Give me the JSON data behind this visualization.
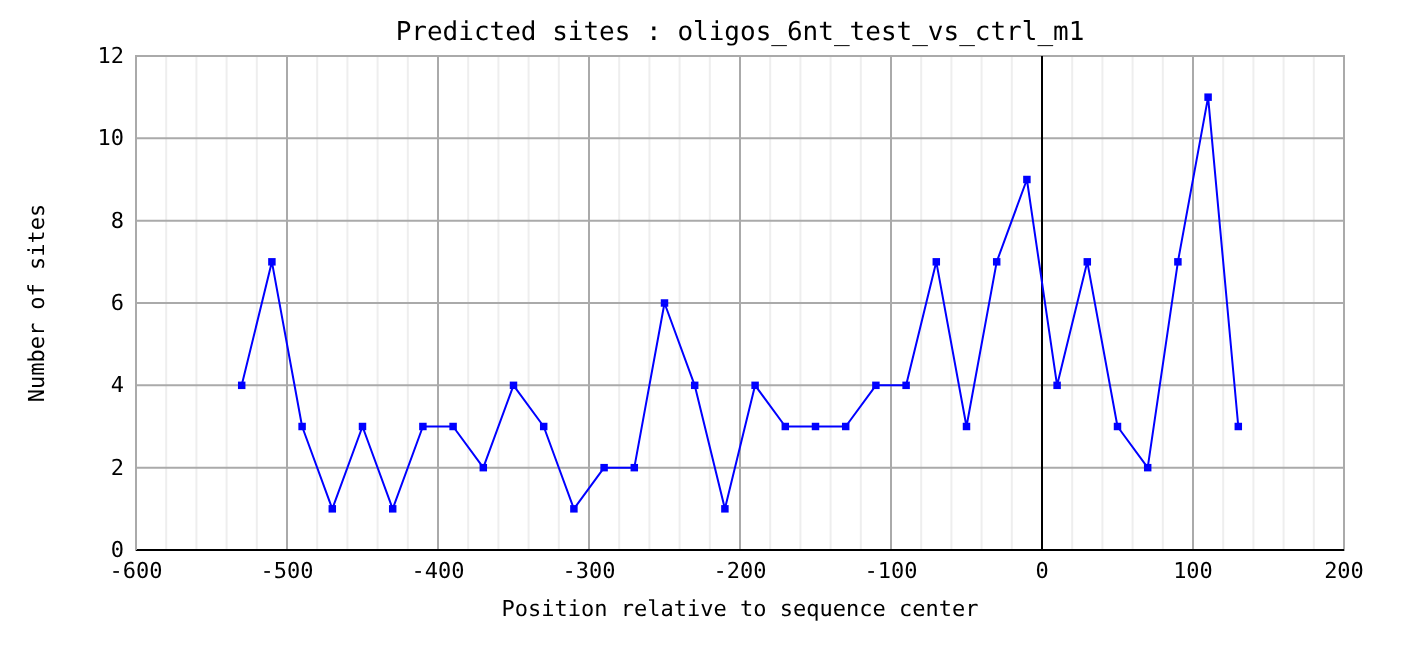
{
  "chart_data": {
    "type": "line",
    "title": "Predicted sites : oligos_6nt_test_vs_ctrl_m1",
    "xlabel": "Position relative to sequence center",
    "ylabel": "Number of sites",
    "x": [
      -530,
      -510,
      -490,
      -470,
      -450,
      -430,
      -410,
      -390,
      -370,
      -350,
      -330,
      -310,
      -290,
      -270,
      -250,
      -230,
      -210,
      -190,
      -170,
      -150,
      -130,
      -110,
      -90,
      -70,
      -50,
      -30,
      -10,
      10,
      30,
      50,
      70,
      90,
      110,
      130
    ],
    "series": [
      {
        "color": "#0000ff",
        "values": [
          4,
          7,
          3,
          1,
          3,
          1,
          3,
          3,
          2,
          4,
          3,
          1,
          2,
          2,
          6,
          4,
          1,
          4,
          3,
          3,
          3,
          4,
          4,
          7,
          3,
          7,
          9,
          4,
          7,
          3,
          2,
          7,
          11,
          3
        ]
      }
    ],
    "xlim": [
      -600,
      200
    ],
    "xticks": [
      -600,
      {
        "value": -580,
        "label": null
      },
      {
        "value": -560,
        "label": null
      },
      {
        "value": -540,
        "label": null
      },
      {
        "value": -520,
        "label": null
      },
      -500,
      {
        "value": -480,
        "label": null
      },
      {
        "value": -460,
        "label": null
      },
      {
        "value": -440,
        "label": null
      },
      {
        "value": -420,
        "label": null
      },
      -400,
      {
        "value": -380,
        "label": null
      },
      {
        "value": -360,
        "label": null
      },
      {
        "value": -340,
        "label": null
      },
      {
        "value": -320,
        "label": null
      },
      -300,
      {
        "value": -280,
        "label": null
      },
      {
        "value": -260,
        "label": null
      },
      {
        "value": -240,
        "label": null
      },
      {
        "value": -220,
        "label": null
      },
      -200,
      {
        "value": -180,
        "label": null
      },
      {
        "value": -160,
        "label": null
      },
      {
        "value": -140,
        "label": null
      },
      {
        "value": -120,
        "label": null
      },
      -100,
      {
        "value": -80,
        "label": null
      },
      {
        "value": -60,
        "label": null
      },
      {
        "value": -40,
        "label": null
      },
      {
        "value": -20,
        "label": null
      },
      0,
      {
        "value": 20,
        "label": null
      },
      {
        "value": 40,
        "label": null
      },
      {
        "value": 60,
        "label": null
      },
      {
        "value": 80,
        "label": null
      },
      100,
      {
        "value": 120,
        "label": null
      },
      {
        "value": 140,
        "label": null
      },
      {
        "value": 160,
        "label": null
      },
      {
        "value": 180,
        "label": null
      },
      200
    ],
    "ylim": [
      0,
      12
    ],
    "yticks": [
      0,
      2,
      4,
      6,
      8,
      10,
      12
    ],
    "grid": true,
    "marker": "square",
    "line_style": "solid",
    "ref_lines": [
      {
        "axis": "x",
        "value": 0,
        "color": "#000000"
      }
    ]
  }
}
